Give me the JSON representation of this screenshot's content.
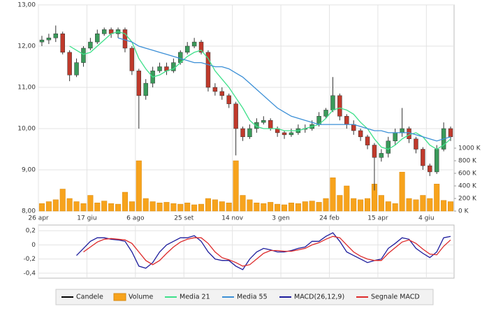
{
  "chart_data": [
    {
      "type": "candlestick",
      "categories": [
        "26 apr",
        null,
        null,
        null,
        null,
        null,
        null,
        "17 giu",
        null,
        null,
        null,
        null,
        null,
        null,
        "6 ago",
        null,
        null,
        null,
        null,
        null,
        null,
        "25 set",
        null,
        null,
        null,
        null,
        null,
        null,
        "14 nov",
        null,
        null,
        null,
        null,
        null,
        null,
        "3 gen",
        null,
        null,
        null,
        null,
        null,
        null,
        "24 feb",
        null,
        null,
        null,
        null,
        null,
        null,
        "15 apr",
        null,
        null,
        null,
        null,
        null,
        null,
        "4 giu",
        null,
        null,
        null
      ],
      "candles": {
        "name": "Candele",
        "color": "#000000",
        "up_color": "#3a9a5a",
        "down_color": "#c0392b",
        "open": [
          12.1,
          12.15,
          12.2,
          12.3,
          11.85,
          11.3,
          11.6,
          11.95,
          12.1,
          12.3,
          12.4,
          12.3,
          12.4,
          11.95,
          11.4,
          10.8,
          11.1,
          11.4,
          11.5,
          11.4,
          11.6,
          11.85,
          12.0,
          12.1,
          11.85,
          11.0,
          10.9,
          10.8,
          10.6,
          10.0,
          9.8,
          10.0,
          10.15,
          10.2,
          10.0,
          9.9,
          9.85,
          9.9,
          10.0,
          10.0,
          10.1,
          10.3,
          10.45,
          10.8,
          10.3,
          10.1,
          9.95,
          9.8,
          9.6,
          9.3,
          9.4,
          9.7,
          9.9,
          10.0,
          9.75,
          9.5,
          9.1,
          8.95,
          9.5,
          10.0
        ],
        "high": [
          12.25,
          12.3,
          12.5,
          12.35,
          11.9,
          11.7,
          12.0,
          12.2,
          12.4,
          12.45,
          12.45,
          12.45,
          12.45,
          12.0,
          11.45,
          11.2,
          11.5,
          11.6,
          11.6,
          11.7,
          11.9,
          12.1,
          12.2,
          12.15,
          11.9,
          11.1,
          11.0,
          10.85,
          10.65,
          10.05,
          10.1,
          10.25,
          10.3,
          10.25,
          10.05,
          9.95,
          10.0,
          10.1,
          10.1,
          10.2,
          10.4,
          10.5,
          11.25,
          10.85,
          10.35,
          10.2,
          10.0,
          9.85,
          9.65,
          9.5,
          9.8,
          10.0,
          10.5,
          10.05,
          9.8,
          9.55,
          9.15,
          9.6,
          10.15,
          10.05
        ],
        "low": [
          12.0,
          12.05,
          12.1,
          11.8,
          11.15,
          11.25,
          11.5,
          11.9,
          12.05,
          12.25,
          12.2,
          12.2,
          11.85,
          11.3,
          10.0,
          10.7,
          11.0,
          11.35,
          11.3,
          11.35,
          11.55,
          11.8,
          11.95,
          11.8,
          10.9,
          10.8,
          10.7,
          10.5,
          9.35,
          9.7,
          9.75,
          9.9,
          10.1,
          9.95,
          9.8,
          9.75,
          9.8,
          9.85,
          9.9,
          9.95,
          10.05,
          10.25,
          10.4,
          10.2,
          10.0,
          9.85,
          9.7,
          9.5,
          8.5,
          9.2,
          9.3,
          9.6,
          9.8,
          9.65,
          9.4,
          9.0,
          8.85,
          8.9,
          9.45,
          9.7
        ],
        "close": [
          12.15,
          12.2,
          12.3,
          11.85,
          11.3,
          11.6,
          11.95,
          12.1,
          12.3,
          12.4,
          12.3,
          12.4,
          11.95,
          11.4,
          10.8,
          11.1,
          11.4,
          11.5,
          11.4,
          11.6,
          11.85,
          12.0,
          12.1,
          11.85,
          11.0,
          10.9,
          10.8,
          10.6,
          10.0,
          9.8,
          10.0,
          10.15,
          10.2,
          10.0,
          9.9,
          9.85,
          9.9,
          10.0,
          10.0,
          10.1,
          10.3,
          10.45,
          10.8,
          10.3,
          10.1,
          9.95,
          9.8,
          9.6,
          9.3,
          9.4,
          9.7,
          9.9,
          10.0,
          9.75,
          9.5,
          9.1,
          8.95,
          9.5,
          10.0,
          9.8
        ]
      },
      "volume": {
        "name": "Volume",
        "color": "#f7a31c",
        "axis": "y2",
        "values": [
          120,
          150,
          180,
          350,
          200,
          150,
          120,
          250,
          130,
          160,
          120,
          110,
          300,
          150,
          800,
          200,
          150,
          130,
          140,
          120,
          110,
          130,
          100,
          110,
          200,
          180,
          150,
          130,
          800,
          250,
          180,
          130,
          120,
          140,
          110,
          100,
          130,
          120,
          150,
          160,
          140,
          200,
          530,
          250,
          400,
          200,
          180,
          200,
          430,
          250,
          150,
          120,
          620,
          200,
          180,
          250,
          200,
          430,
          170,
          150
        ]
      },
      "series": [
        {
          "name": "Media 21",
          "color": "#3ee08a",
          "values": [
            null,
            null,
            null,
            null,
            12.0,
            11.9,
            11.8,
            11.85,
            12.0,
            12.15,
            12.3,
            12.35,
            12.3,
            12.1,
            11.7,
            11.45,
            11.25,
            11.3,
            11.4,
            11.45,
            11.6,
            11.75,
            11.85,
            11.9,
            11.7,
            11.4,
            11.2,
            11.0,
            10.75,
            10.5,
            10.2,
            10.05,
            10.0,
            10.0,
            10.0,
            9.95,
            9.95,
            9.95,
            10.0,
            10.05,
            10.1,
            10.25,
            10.45,
            10.5,
            10.45,
            10.35,
            10.15,
            10.0,
            9.75,
            9.55,
            9.5,
            9.6,
            9.75,
            9.85,
            9.9,
            9.8,
            9.6,
            9.5,
            9.6,
            9.75
          ]
        },
        {
          "name": "Media 55",
          "color": "#3b8fd6",
          "values": [
            null,
            null,
            null,
            null,
            null,
            null,
            null,
            null,
            null,
            null,
            null,
            12.2,
            12.15,
            12.1,
            12.0,
            11.95,
            11.9,
            11.85,
            11.8,
            11.75,
            11.7,
            11.65,
            11.6,
            11.6,
            11.55,
            11.5,
            11.5,
            11.45,
            11.35,
            11.25,
            11.1,
            10.95,
            10.8,
            10.65,
            10.5,
            10.4,
            10.3,
            10.25,
            10.2,
            10.15,
            10.1,
            10.1,
            10.1,
            10.1,
            10.1,
            10.1,
            10.05,
            10.0,
            9.95,
            9.95,
            9.9,
            9.9,
            9.9,
            9.9,
            9.85,
            9.8,
            9.75,
            9.7,
            9.75,
            9.8
          ]
        }
      ],
      "ylim": [
        8,
        13
      ],
      "yticks": [
        {
          "value": 8,
          "label": "8,00"
        },
        {
          "value": 9,
          "label": "9,00"
        },
        {
          "value": 10,
          "label": "10,00"
        },
        {
          "value": 11,
          "label": "11,00"
        },
        {
          "value": 12,
          "label": "12,00"
        },
        {
          "value": 13,
          "label": "13,00"
        }
      ],
      "y2lim": [
        0,
        3278
      ],
      "y2ticks": [
        {
          "value": 0,
          "label": "0 K"
        },
        {
          "value": 200,
          "label": "200 K"
        },
        {
          "value": 400,
          "label": "400 K"
        },
        {
          "value": 600,
          "label": "600 K"
        },
        {
          "value": 800,
          "label": "800 K"
        },
        {
          "value": 1000,
          "label": "1000 K"
        }
      ],
      "grid": true
    },
    {
      "type": "line",
      "series": [
        {
          "name": "MACD(26,12,9)",
          "color": "#1c1c9c",
          "values": [
            null,
            null,
            null,
            null,
            null,
            -0.15,
            -0.05,
            0.05,
            0.1,
            0.1,
            0.08,
            0.07,
            0.05,
            -0.1,
            -0.3,
            -0.33,
            -0.25,
            -0.1,
            0.0,
            0.05,
            0.1,
            0.1,
            0.13,
            0.05,
            -0.1,
            -0.2,
            -0.22,
            -0.22,
            -0.3,
            -0.35,
            -0.2,
            -0.1,
            -0.05,
            -0.07,
            -0.1,
            -0.1,
            -0.08,
            -0.05,
            -0.03,
            0.05,
            0.05,
            0.12,
            0.17,
            0.05,
            -0.1,
            -0.15,
            -0.2,
            -0.25,
            -0.22,
            -0.2,
            -0.05,
            0.02,
            0.1,
            0.08,
            -0.05,
            -0.12,
            -0.18,
            -0.1,
            0.1,
            0.12
          ]
        },
        {
          "name": "Segnale MACD",
          "color": "#dd2a2a",
          "values": [
            null,
            null,
            null,
            null,
            null,
            null,
            -0.1,
            -0.03,
            0.04,
            0.08,
            0.09,
            0.08,
            0.07,
            0.02,
            -0.1,
            -0.22,
            -0.28,
            -0.22,
            -0.12,
            -0.03,
            0.04,
            0.08,
            0.1,
            0.1,
            0.02,
            -0.1,
            -0.18,
            -0.21,
            -0.25,
            -0.3,
            -0.28,
            -0.2,
            -0.12,
            -0.08,
            -0.08,
            -0.09,
            -0.09,
            -0.07,
            -0.05,
            0.0,
            0.03,
            0.08,
            0.12,
            0.1,
            0.0,
            -0.1,
            -0.16,
            -0.2,
            -0.22,
            -0.22,
            -0.12,
            -0.04,
            0.04,
            0.07,
            0.02,
            -0.06,
            -0.13,
            -0.14,
            -0.02,
            0.07
          ]
        }
      ],
      "ylim": [
        -0.47,
        0.28
      ],
      "yticks": [
        {
          "value": -0.4,
          "label": "-0,4"
        },
        {
          "value": -0.2,
          "label": "-0,2"
        },
        {
          "value": 0,
          "label": "0"
        },
        {
          "value": 0.2,
          "label": "0,2"
        }
      ],
      "grid": true
    }
  ]
}
